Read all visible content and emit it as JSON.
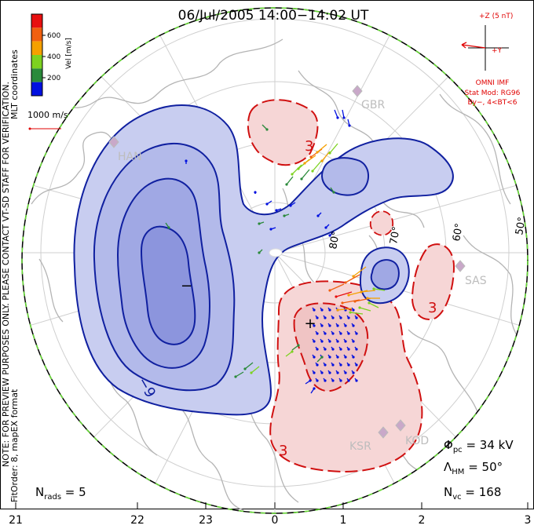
{
  "title": "06/Jul/2005 14:00−14:02 UT",
  "side_note": {
    "line1": "NOTE: FOR PREVIEW PURPOSES ONLY. PLEASE CONTACT VT-SD STAFF FOR VERIFICATION.",
    "line2": "FitOrder: 8, mapEX format",
    "line3": "MLT coordinates"
  },
  "colorbar": {
    "label": "Vel [m/s]",
    "ticks": [
      "200",
      "400",
      "600"
    ],
    "colors": [
      "#0010e0",
      "#2a8a3a",
      "#7dd220",
      "#f5a000",
      "#f06010",
      "#e81010"
    ]
  },
  "velocity_scale": {
    "label": "1000 m/s",
    "color": "#e00000"
  },
  "imf": {
    "z_label": "+Z (5 nT)",
    "y_label": "+Y",
    "source": "OMNI IMF",
    "model": "Stat Mod: RG96",
    "condition": "By−, 4<BT<6",
    "color": "#e00000"
  },
  "stations": [
    "HAN",
    "GBR",
    "SAS",
    "KSR",
    "KOD"
  ],
  "latitude_labels": [
    "80°",
    "70°",
    "60°",
    "50°"
  ],
  "contour_labels": [
    "3",
    "−9",
    "−",
    "3",
    "3"
  ],
  "stats": {
    "phi_pc": "Φpc = 34 kV",
    "lambda_hm": "ΛHM = 50°",
    "n_vc": "Nvc = 168",
    "n_rads": "Nrads = 5"
  },
  "stats_parts": {
    "phi_sym": "Φ",
    "phi_sub": "pc",
    "phi_val": " = 34 kV",
    "lam_sym": "Λ",
    "lam_sub": "HM",
    "lam_val": " = 50°",
    "nvc_sym": "N",
    "nvc_sub": "vc",
    "nvc_val": " = 168",
    "nr_sym": "N",
    "nr_sub": "rads",
    "nr_val": " = 5"
  },
  "mlt_axis": [
    "21",
    "22",
    "23",
    "0",
    "1",
    "2",
    "3"
  ],
  "colors": {
    "negative_fill": "#c8cdf0",
    "positive_fill": "#f6d6d6",
    "negative_line": "#1020a0",
    "positive_line": "#d01010",
    "land": "#b8b8b8",
    "grid": "#c8c8c8",
    "boundary_green": "#66dd33"
  }
}
